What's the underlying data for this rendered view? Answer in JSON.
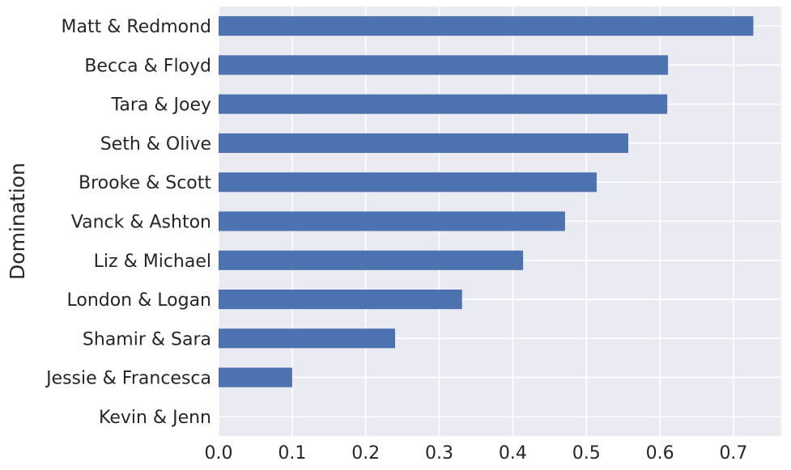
{
  "chart_data": {
    "type": "bar",
    "orientation": "horizontal",
    "title": "",
    "xlabel": "",
    "ylabel": "Domination",
    "categories": [
      "Matt & Redmond",
      "Becca & Floyd",
      "Tara & Joey",
      "Seth & Olive",
      "Brooke & Scott",
      "Vanck & Ashton",
      "Liz & Michael",
      "London & Logan",
      "Shamir & Sara",
      "Jessie & Francesca",
      "Kevin & Jenn"
    ],
    "values": [
      0.727,
      0.611,
      0.61,
      0.557,
      0.514,
      0.471,
      0.414,
      0.331,
      0.24,
      0.1,
      0.0
    ],
    "xlim": [
      0.0,
      0.765
    ],
    "xticks": [
      "0.0",
      "0.1",
      "0.2",
      "0.3",
      "0.4",
      "0.5",
      "0.6",
      "0.7"
    ],
    "grid": true,
    "legend": "none",
    "colors": {
      "bar": "#4c72b0",
      "background": "#eaeaf2",
      "grid": "#ffffff"
    }
  }
}
